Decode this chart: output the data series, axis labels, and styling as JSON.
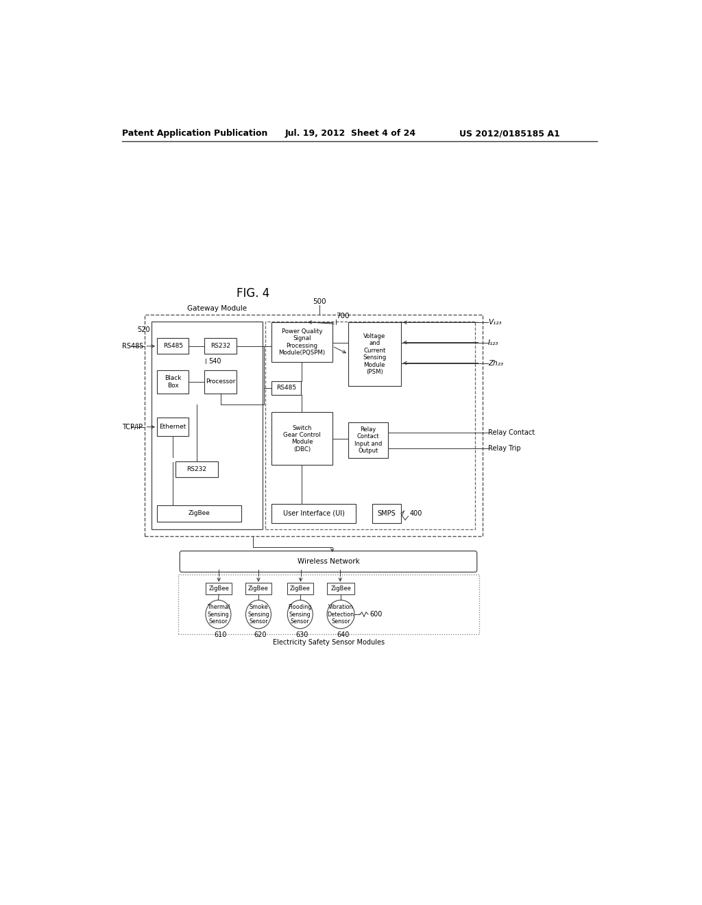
{
  "bg_color": "#ffffff",
  "header_left": "Patent Application Publication",
  "header_mid": "Jul. 19, 2012  Sheet 4 of 24",
  "header_right": "US 2012/0185185 A1",
  "fig_label": "FIG. 4",
  "header_fontsize": 9,
  "fig_fontsize": 12
}
